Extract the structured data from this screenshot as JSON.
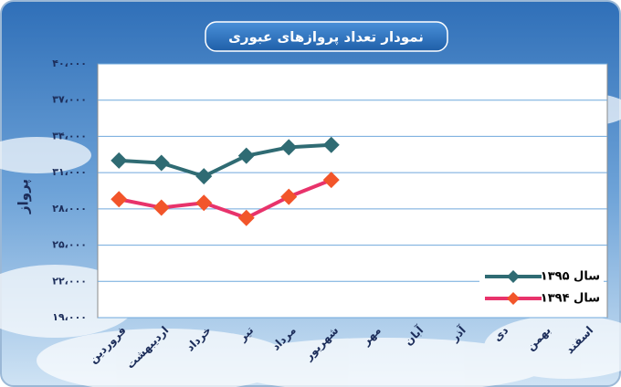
{
  "chart_data": {
    "type": "line",
    "title": "نمودار تعداد پروازهای عبوری",
    "y_label": "پرواز",
    "categories": [
      "فروردین",
      "اردیبهشت",
      "خرداد",
      "تیر",
      "مرداد",
      "شهریور",
      "مهر",
      "آبان",
      "آذر",
      "دی",
      "بهمن",
      "اسفند"
    ],
    "series": [
      {
        "name": "سال ۱۳۹۵",
        "color": "#2f6b73",
        "marker_color": "#2f6b73",
        "values": [
          32000,
          31800,
          30700,
          32400,
          33100,
          33300,
          null,
          null,
          null,
          null,
          null,
          null
        ]
      },
      {
        "name": "سال ۱۳۹۴",
        "color": "#e8336b",
        "marker_color": "#f2552a",
        "values": [
          28800,
          28100,
          28500,
          27250,
          29000,
          30400,
          null,
          null,
          null,
          null,
          null,
          null
        ]
      }
    ],
    "ylim": [
      19000,
      40000
    ],
    "yticks": [
      {
        "value": 19000,
        "label": "۱۹،۰۰۰"
      },
      {
        "value": 22000,
        "label": "۲۲،۰۰۰"
      },
      {
        "value": 25000,
        "label": "۲۵،۰۰۰"
      },
      {
        "value": 28000,
        "label": "۲۸،۰۰۰"
      },
      {
        "value": 31000,
        "label": "۳۱،۰۰۰"
      },
      {
        "value": 34000,
        "label": "۳۴،۰۰۰"
      },
      {
        "value": 37000,
        "label": "۳۷،۰۰۰"
      },
      {
        "value": 40000,
        "label": "۴۰،۰۰۰"
      }
    ],
    "grid": true,
    "legend_position": "lower right"
  }
}
